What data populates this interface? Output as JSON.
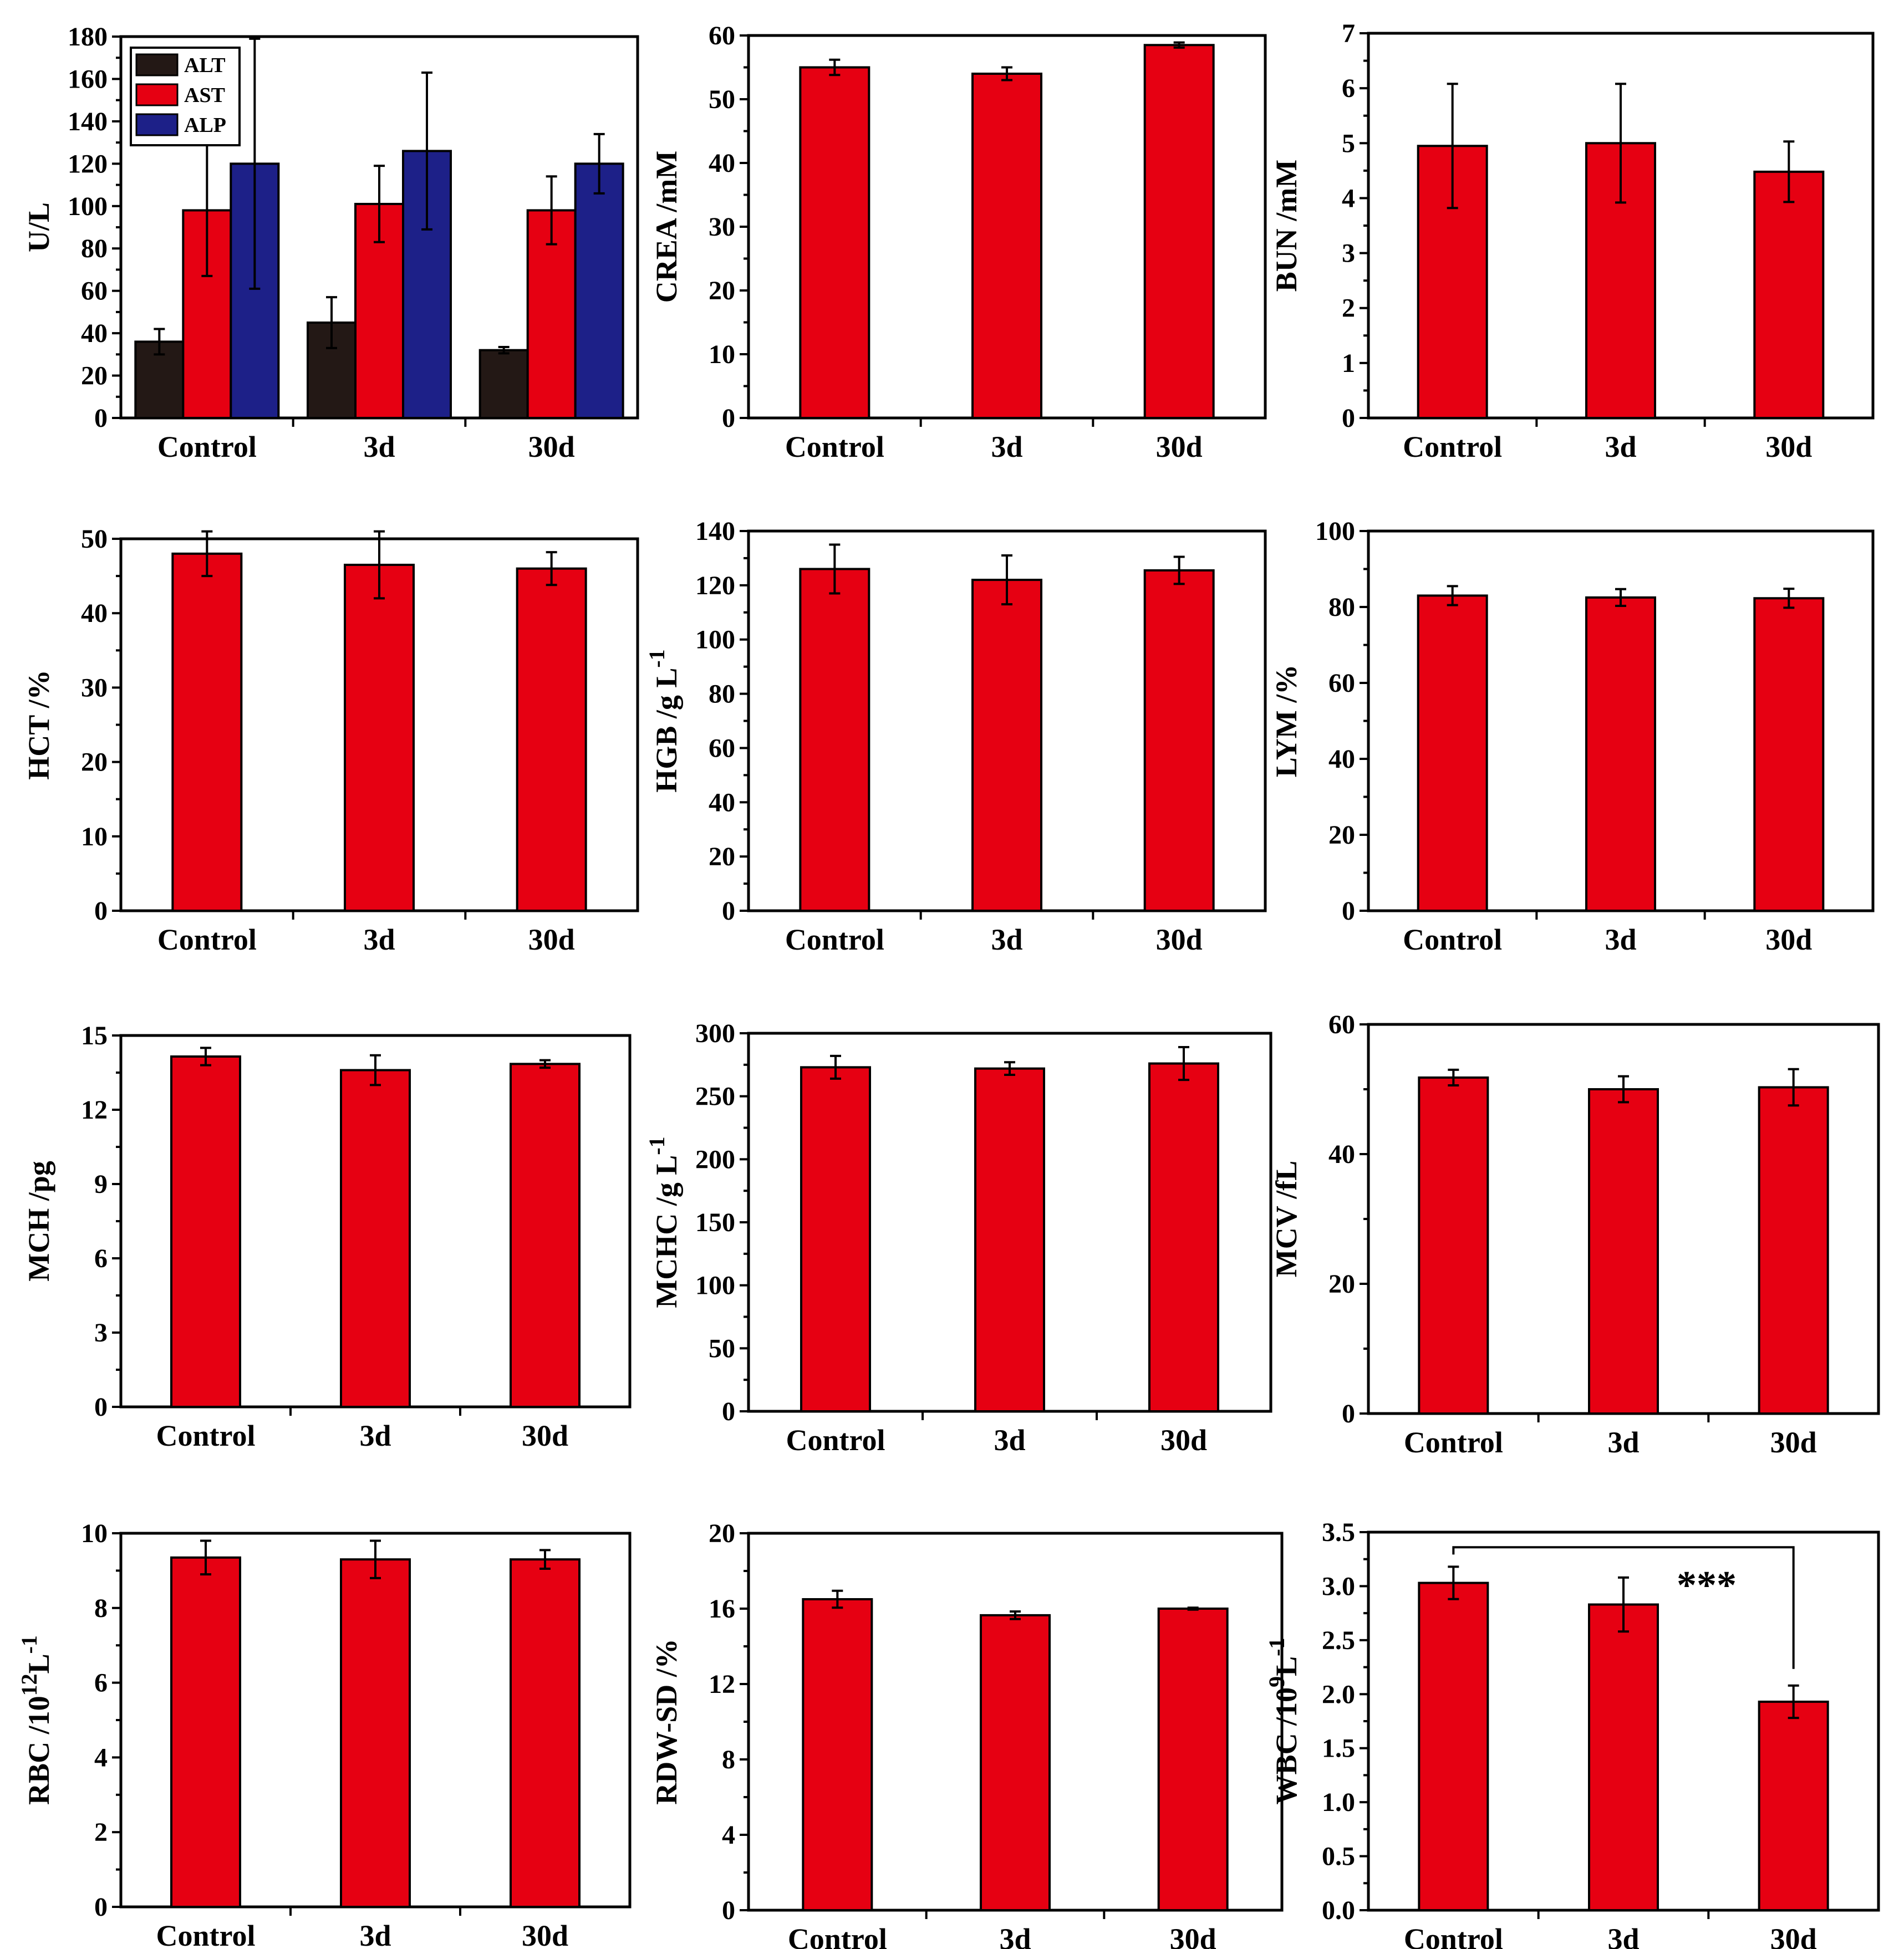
{
  "figure": {
    "colors": {
      "ALT": "#231815",
      "AST": "#e60012",
      "ALP": "#1d2088",
      "single": "#e60012",
      "axis": "#000000"
    }
  },
  "chart_data": [
    {
      "id": "liver-enzymes",
      "type": "bar",
      "ylabel": "U/L",
      "ylim": [
        0,
        180
      ],
      "yticks": [
        "0",
        "20",
        "40",
        "60",
        "80",
        "100",
        "120",
        "140",
        "160",
        "180"
      ],
      "categories": [
        "Control",
        "3d",
        "30d"
      ],
      "series": [
        {
          "name": "ALT",
          "values": [
            36,
            45,
            32
          ],
          "errors": [
            6,
            12,
            1.5
          ]
        },
        {
          "name": "AST",
          "values": [
            98,
            101,
            98
          ],
          "errors": [
            31,
            18,
            16
          ]
        },
        {
          "name": "ALP",
          "values": [
            120,
            126,
            120
          ],
          "errors": [
            59,
            37,
            14
          ]
        }
      ],
      "legend": "top-left"
    },
    {
      "id": "crea",
      "type": "bar",
      "ylabel": "CREA /mM",
      "ylim": [
        0,
        60
      ],
      "yticks": [
        "0",
        "10",
        "20",
        "30",
        "40",
        "50",
        "60"
      ],
      "categories": [
        "Control",
        "3d",
        "30d"
      ],
      "series": [
        {
          "name": "CREA",
          "values": [
            55,
            54,
            58.5
          ],
          "errors": [
            1.2,
            1.0,
            0.4
          ]
        }
      ]
    },
    {
      "id": "bun",
      "type": "bar",
      "ylabel": "BUN /mM",
      "ylim": [
        0,
        7
      ],
      "yticks": [
        "0",
        "1",
        "2",
        "3",
        "4",
        "5",
        "6",
        "7"
      ],
      "categories": [
        "Control",
        "3d",
        "30d"
      ],
      "series": [
        {
          "name": "BUN",
          "values": [
            4.95,
            5.0,
            4.48
          ],
          "errors": [
            1.13,
            1.08,
            0.55
          ]
        }
      ]
    },
    {
      "id": "hct",
      "type": "bar",
      "ylabel": "HCT /%",
      "ylim": [
        0,
        50
      ],
      "yticks": [
        "0",
        "10",
        "20",
        "30",
        "40",
        "50"
      ],
      "categories": [
        "Control",
        "3d",
        "30d"
      ],
      "series": [
        {
          "name": "HCT",
          "values": [
            48,
            46.5,
            46
          ],
          "errors": [
            3,
            4.5,
            2.2
          ]
        }
      ]
    },
    {
      "id": "hgb",
      "type": "bar",
      "ylabel": "HGB /g L",
      "ylabel_sup": "-1",
      "ylim": [
        0,
        140
      ],
      "yticks": [
        "0",
        "20",
        "40",
        "60",
        "80",
        "100",
        "120",
        "140"
      ],
      "categories": [
        "Control",
        "3d",
        "30d"
      ],
      "series": [
        {
          "name": "HGB",
          "values": [
            126,
            122,
            125.5
          ],
          "errors": [
            9,
            9,
            5
          ]
        }
      ]
    },
    {
      "id": "lym",
      "type": "bar",
      "ylabel": "LYM /%",
      "ylim": [
        0,
        100
      ],
      "yticks": [
        "0",
        "20",
        "40",
        "60",
        "80",
        "100"
      ],
      "categories": [
        "Control",
        "3d",
        "30d"
      ],
      "series": [
        {
          "name": "LYM",
          "values": [
            83,
            82.5,
            82.3
          ],
          "errors": [
            2.5,
            2.2,
            2.5
          ]
        }
      ]
    },
    {
      "id": "mch",
      "type": "bar",
      "ylabel": "MCH /pg",
      "ylim": [
        0,
        15
      ],
      "yticks": [
        "0",
        "3",
        "6",
        "9",
        "12",
        "15"
      ],
      "categories": [
        "Control",
        "3d",
        "30d"
      ],
      "series": [
        {
          "name": "MCH",
          "values": [
            14.15,
            13.6,
            13.85
          ],
          "errors": [
            0.35,
            0.6,
            0.15
          ]
        }
      ]
    },
    {
      "id": "mchc",
      "type": "bar",
      "ylabel": "MCHC /g L",
      "ylabel_sup": "-1",
      "ylim": [
        0,
        300
      ],
      "yticks": [
        "0",
        "50",
        "100",
        "150",
        "200",
        "250",
        "300"
      ],
      "categories": [
        "Control",
        "3d",
        "30d"
      ],
      "series": [
        {
          "name": "MCHC",
          "values": [
            273,
            272,
            276
          ],
          "errors": [
            9,
            5,
            13
          ]
        }
      ]
    },
    {
      "id": "mcv",
      "type": "bar",
      "ylabel": "MCV /fL",
      "ylim": [
        0,
        60
      ],
      "yticks": [
        "0",
        "20",
        "40",
        "60"
      ],
      "categories": [
        "Control",
        "3d",
        "30d"
      ],
      "series": [
        {
          "name": "MCV",
          "values": [
            51.8,
            50,
            50.3
          ],
          "errors": [
            1.2,
            2,
            2.8
          ]
        }
      ]
    },
    {
      "id": "rbc",
      "type": "bar",
      "ylabel": "RBC /10",
      "ylabel_sup": "12",
      "ylabel_tail": "L",
      "ylabel_tail_sup": "-1",
      "ylim": [
        0,
        10
      ],
      "yticks": [
        "0",
        "2",
        "4",
        "6",
        "8",
        "10"
      ],
      "categories": [
        "Control",
        "3d",
        "30d"
      ],
      "series": [
        {
          "name": "RBC",
          "values": [
            9.35,
            9.3,
            9.3
          ],
          "errors": [
            0.45,
            0.5,
            0.25
          ]
        }
      ]
    },
    {
      "id": "rdw",
      "type": "bar",
      "ylabel": "RDW-SD /%",
      "ylim": [
        0,
        20
      ],
      "yticks": [
        "0",
        "4",
        "8",
        "12",
        "16",
        "20"
      ],
      "categories": [
        "Control",
        "3d",
        "30d"
      ],
      "series": [
        {
          "name": "RDW-SD",
          "values": [
            16.5,
            15.65,
            16
          ],
          "errors": [
            0.45,
            0.2,
            0.05
          ]
        }
      ]
    },
    {
      "id": "wbc",
      "type": "bar",
      "ylabel": "WBC /10",
      "ylabel_sup": "9",
      "ylabel_tail": "L",
      "ylabel_tail_sup": "-1",
      "ylim": [
        0,
        3.5
      ],
      "yticks": [
        "0.0",
        "0.5",
        "1.0",
        "1.5",
        "2.0",
        "2.5",
        "3.0",
        "3.5"
      ],
      "categories": [
        "Control",
        "3d",
        "30d"
      ],
      "series": [
        {
          "name": "WBC",
          "values": [
            3.03,
            2.83,
            1.93
          ],
          "errors": [
            0.15,
            0.25,
            0.15
          ]
        }
      ],
      "annotation": {
        "text": "***",
        "from": "Control",
        "to": "30d"
      }
    }
  ]
}
